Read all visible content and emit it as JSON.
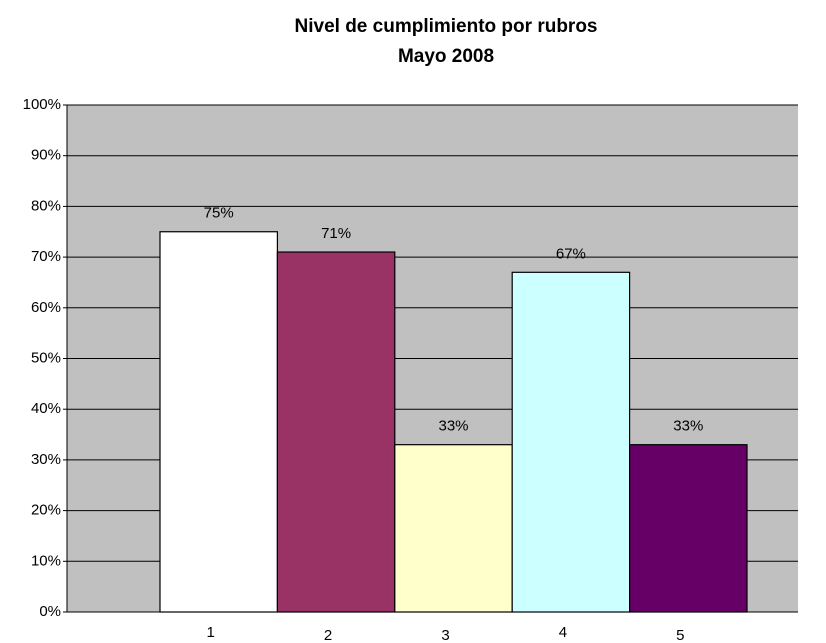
{
  "chart_data": {
    "type": "bar",
    "title": "Nivel de cumplimiento por rubros",
    "subtitle": "Mayo 2008",
    "categories": [
      "1",
      "2",
      "3",
      "4",
      "5"
    ],
    "values": [
      75,
      71,
      33,
      67,
      33
    ],
    "value_labels": [
      "75%",
      "71%",
      "33%",
      "67%",
      "33%"
    ],
    "colors": [
      "#ffffff",
      "#993366",
      "#ffffcc",
      "#ccffff",
      "#660066"
    ],
    "ylim": [
      0,
      100
    ],
    "yticks": [
      {
        "value": 0,
        "label": "0%"
      },
      {
        "value": 10,
        "label": "10%"
      },
      {
        "value": 20,
        "label": "20%"
      },
      {
        "value": 30,
        "label": "30%"
      },
      {
        "value": 40,
        "label": "40%"
      },
      {
        "value": 50,
        "label": "50%"
      },
      {
        "value": 60,
        "label": "60%"
      },
      {
        "value": 70,
        "label": "70%"
      },
      {
        "value": 80,
        "label": "80%"
      },
      {
        "value": 90,
        "label": "90%"
      },
      {
        "value": 100,
        "label": "100%"
      }
    ],
    "grid": true
  }
}
